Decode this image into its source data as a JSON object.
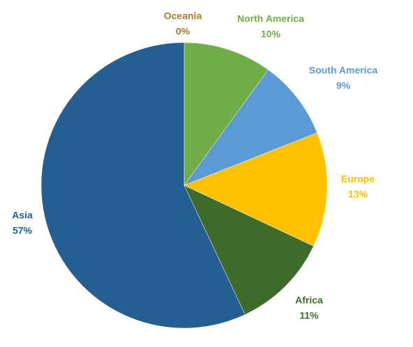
{
  "chart_data": {
    "type": "pie",
    "categories": [
      "Oceania",
      "North America",
      "South America",
      "Europe",
      "Africa",
      "Asia"
    ],
    "values": [
      0,
      10,
      9,
      13,
      11,
      57
    ],
    "value_labels": [
      "0%",
      "10%",
      "9%",
      "13%",
      "11%",
      "57%"
    ],
    "colors": [
      "#a67c2e",
      "#70ad47",
      "#5b9bd5",
      "#ffc000",
      "#3e6b2c",
      "#255e91"
    ]
  }
}
